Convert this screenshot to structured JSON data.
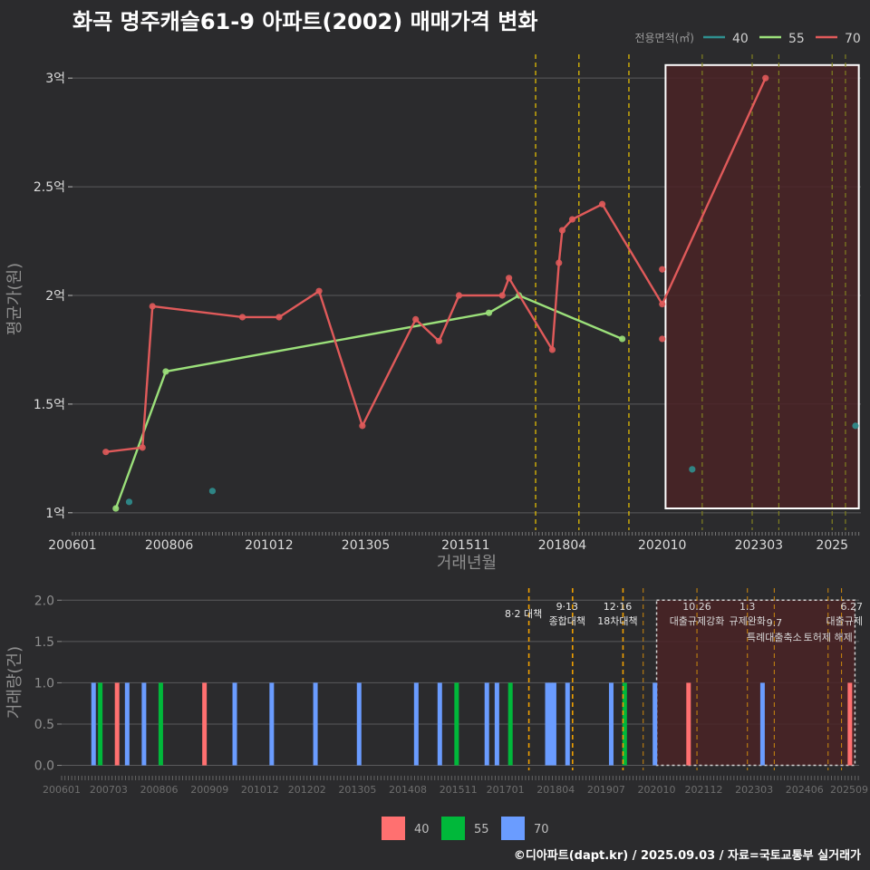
{
  "title": "화곡 명주캐슬61-9 아파트(2002) 매매가격 변화",
  "credit": "©디아파트(dapt.kr) / 2025.09.03 / 자료=국토교통부 실거래가",
  "colors": {
    "background": "#2b2b2d",
    "grid": "#5a5a5c",
    "area40_line": "#2f8f8f",
    "area55_line": "#9be07a",
    "area70_line": "#e05a5a",
    "bar40": "#ff7070",
    "bar55": "#00b83a",
    "bar70": "#6a9cff",
    "policy_tight": "#f0c800",
    "policy_loose": "#808020",
    "policy_bottom": "#f0a000",
    "highlight_fill": "#4a2326",
    "highlight_border": "#ffffff"
  },
  "chart_data": [
    {
      "type": "line",
      "ylabel": "평균가(원)",
      "xlabel": "거래년월",
      "x_ticks": [
        "200601",
        "200806",
        "201012",
        "201305",
        "201511",
        "201804",
        "202010",
        "202303",
        "2025"
      ],
      "y_ticks": [
        "1억",
        "1.5억",
        "2억",
        "2.5억",
        "3억"
      ],
      "ylim": [
        0.92,
        3.13
      ],
      "legend": {
        "title": "전용면적(㎡)",
        "position": "top-right",
        "entries": [
          "40",
          "55",
          "70"
        ]
      },
      "series": [
        {
          "name": "40",
          "mode": "points",
          "points": [
            [
              "2007-06",
              1.05
            ],
            [
              "2009-07",
              1.1
            ],
            [
              "2021-07",
              1.2
            ],
            [
              "2025-08",
              1.4
            ]
          ]
        },
        {
          "name": "55",
          "mode": "line",
          "points": [
            [
              "2007-02",
              1.02
            ],
            [
              "2008-05",
              1.65
            ],
            [
              "2016-06",
              1.92
            ],
            [
              "2017-03",
              2.0
            ],
            [
              "2019-10",
              1.8
            ]
          ]
        },
        {
          "name": "70",
          "mode": "line",
          "points": [
            [
              "2006-11",
              1.28
            ],
            [
              "2007-10",
              1.3
            ],
            [
              "2008-01",
              1.95
            ],
            [
              "2010-04",
              1.9
            ],
            [
              "2011-03",
              1.9
            ],
            [
              "2012-03",
              2.02
            ],
            [
              "2013-04",
              1.4
            ],
            [
              "2014-08",
              1.89
            ],
            [
              "2015-03",
              1.79
            ],
            [
              "2015-09",
              2.0
            ],
            [
              "2016-10",
              2.0
            ],
            [
              "2016-12",
              2.08
            ],
            [
              "2018-01",
              1.75
            ],
            [
              "2018-03",
              2.15
            ],
            [
              "2018-04",
              2.3
            ],
            [
              "2018-07",
              2.35
            ],
            [
              "2019-04",
              2.42
            ],
            [
              "2020-10",
              1.96
            ],
            [
              "2023-05",
              3.0
            ]
          ]
        },
        {
          "name": "70",
          "mode": "points",
          "points": [
            [
              "2020-10",
              2.12
            ],
            [
              "2020-10",
              1.8
            ]
          ]
        }
      ],
      "policy_lines": {
        "tight": [
          "2017-08",
          "2018-09",
          "2019-12"
        ],
        "loose": [
          "2021-10",
          "2023-01",
          "2023-09",
          "2025-01",
          "2025-05"
        ]
      },
      "highlight": {
        "from": "2020-11",
        "to": "2025-09",
        "ymin": 1.02,
        "ymax": 3.06
      }
    },
    {
      "type": "bar",
      "ylabel": "거래량(건)",
      "x_ticks": [
        "200601",
        "200703",
        "200806",
        "200909",
        "201012",
        "201202",
        "201305",
        "201408",
        "201511",
        "201701",
        "201804",
        "201907",
        "202010",
        "202112",
        "202303",
        "202406",
        "202509"
      ],
      "y_ticks": [
        "0.0",
        "0.5",
        "1.0",
        "1.5",
        "2.0"
      ],
      "ylim": [
        -0.06,
        2.08
      ],
      "legend": {
        "position": "bottom",
        "entries": [
          "40",
          "55",
          "70"
        ]
      },
      "bars": [
        {
          "date": "2006-10",
          "area": "70",
          "count": 1
        },
        {
          "date": "2006-12",
          "area": "55",
          "count": 1
        },
        {
          "date": "2007-05",
          "area": "40",
          "count": 1
        },
        {
          "date": "2007-08",
          "area": "70",
          "count": 1
        },
        {
          "date": "2008-01",
          "area": "70",
          "count": 1
        },
        {
          "date": "2008-06",
          "area": "55",
          "count": 1
        },
        {
          "date": "2009-07",
          "area": "40",
          "count": 1
        },
        {
          "date": "2010-04",
          "area": "70",
          "count": 1
        },
        {
          "date": "2011-03",
          "area": "70",
          "count": 1
        },
        {
          "date": "2012-04",
          "area": "70",
          "count": 1
        },
        {
          "date": "2013-05",
          "area": "70",
          "count": 1
        },
        {
          "date": "2014-10",
          "area": "70",
          "count": 1
        },
        {
          "date": "2015-05",
          "area": "70",
          "count": 1
        },
        {
          "date": "2015-10",
          "area": "55",
          "count": 1
        },
        {
          "date": "2016-07",
          "area": "70",
          "count": 1
        },
        {
          "date": "2016-10",
          "area": "70",
          "count": 1
        },
        {
          "date": "2017-02",
          "area": "55",
          "count": 1
        },
        {
          "date": "2018-01",
          "area": "70",
          "count": 1
        },
        {
          "date": "2018-02",
          "area": "70",
          "count": 1
        },
        {
          "date": "2018-03",
          "area": "70",
          "count": 1
        },
        {
          "date": "2018-07",
          "area": "70",
          "count": 1
        },
        {
          "date": "2019-08",
          "area": "70",
          "count": 1
        },
        {
          "date": "2019-12",
          "area": "55",
          "count": 1
        },
        {
          "date": "2020-09",
          "area": "70",
          "count": 1
        },
        {
          "date": "2021-07",
          "area": "40",
          "count": 1
        },
        {
          "date": "2023-05",
          "area": "70",
          "count": 1
        },
        {
          "date": "2025-07",
          "area": "40",
          "count": 1
        }
      ],
      "policy_lines": [
        {
          "date": "2017-08",
          "kind": "tight",
          "labels": [
            "8·2 대책"
          ]
        },
        {
          "date": "2018-09",
          "kind": "tight",
          "labels": [
            "9·13",
            "종합대책"
          ]
        },
        {
          "date": "2019-12",
          "kind": "tight",
          "labels": [
            "12·16",
            "18차대책"
          ]
        },
        {
          "date": "2020-06",
          "kind": "loose",
          "labels": []
        },
        {
          "date": "2021-10",
          "kind": "loose",
          "labels": [
            "10.26",
            "대출규제강화"
          ]
        },
        {
          "date": "2023-01",
          "kind": "loose",
          "labels": [
            "1.3",
            "규제완화"
          ]
        },
        {
          "date": "2023-09",
          "kind": "loose",
          "labels": [
            "9.7",
            "특례대출축소"
          ]
        },
        {
          "date": "2025-01",
          "kind": "loose",
          "labels": [
            "토허제 해제"
          ]
        },
        {
          "date": "2025-05",
          "kind": "loose",
          "labels": [
            "6.27",
            "대출규제"
          ]
        }
      ],
      "highlight": {
        "from": "2020-10",
        "to": "2025-09",
        "ymin": 0.0,
        "ymax": 2.0
      }
    }
  ]
}
